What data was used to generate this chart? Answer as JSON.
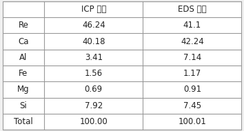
{
  "col_headers": [
    "",
    "ICP 결과",
    "EDS 결과"
  ],
  "rows": [
    [
      "Re",
      "46.24",
      "41.1"
    ],
    [
      "Ca",
      "40.18",
      "42.24"
    ],
    [
      "Al",
      "3.41",
      "7.14"
    ],
    [
      "Fe",
      "1.56",
      "1.17"
    ],
    [
      "Mg",
      "0.69",
      "0.91"
    ],
    [
      "Si",
      "7.92",
      "7.45"
    ],
    [
      "Total",
      "100.00",
      "100.01"
    ]
  ],
  "background_color": "#f0f0f0",
  "cell_bg": "#ffffff",
  "line_color": "#999999",
  "text_color": "#222222",
  "font_size": 8.5,
  "fig_width": 3.54,
  "fig_height": 1.9,
  "dpi": 100
}
